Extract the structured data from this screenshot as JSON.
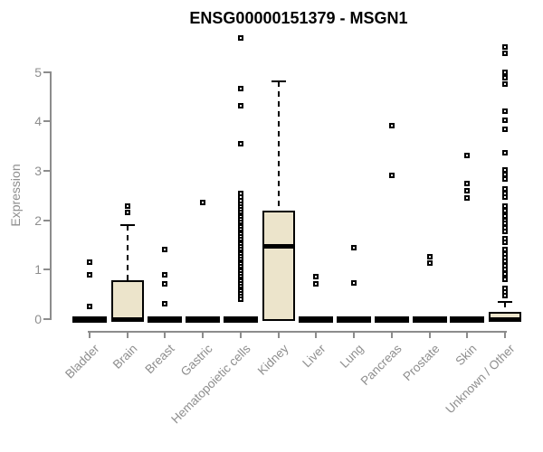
{
  "title": "ENSG00000151379 - MSGN1",
  "chart_data": {
    "type": "boxplot",
    "title": "ENSG00000151379 - MSGN1",
    "xlabel": "",
    "ylabel": "Expression",
    "ylim": [
      0,
      5
    ],
    "yticks": [
      0,
      1,
      2,
      3,
      4,
      5
    ],
    "grid": false,
    "legend": false,
    "box_fill_color": "#ece4cb",
    "box_border_color": "#000000",
    "axis_color": "#8c8c8c",
    "axis_text_color": "#8e8e8e",
    "categories": [
      "Bladder",
      "Brain",
      "Breast",
      "Gastric",
      "Hematopoietic cells",
      "Kidney",
      "Liver",
      "Lung",
      "Pancreas",
      "Prostate",
      "Skin",
      "Unknown / Other"
    ],
    "series": [
      {
        "name": "Bladder",
        "q1": 0,
        "median": 0,
        "q3": 0,
        "whisker_low": 0,
        "whisker_high": 0,
        "outliers": [
          1.15,
          0.9,
          0.26
        ]
      },
      {
        "name": "Brain",
        "q1": 0,
        "median": 0,
        "q3": 0.78,
        "whisker_low": 0,
        "whisker_high": 1.9,
        "outliers": [
          2.28,
          2.16
        ]
      },
      {
        "name": "Breast",
        "q1": 0,
        "median": 0,
        "q3": 0,
        "whisker_low": 0,
        "whisker_high": 0,
        "outliers": [
          1.41,
          0.9,
          0.72,
          0.31
        ]
      },
      {
        "name": "Gastric",
        "q1": 0,
        "median": 0,
        "q3": 0,
        "whisker_low": 0,
        "whisker_high": 0,
        "outliers": [
          2.36
        ]
      },
      {
        "name": "Hematopoietic cells",
        "q1": 0,
        "median": 0,
        "q3": 0,
        "whisker_low": 0,
        "whisker_high": 0,
        "outliers": [
          5.68,
          4.66,
          4.31,
          3.55,
          2.54,
          2.46,
          2.4,
          2.33,
          2.27,
          2.21,
          2.16,
          2.11,
          2.06,
          2.01,
          1.96,
          1.91,
          1.86,
          1.81,
          1.76,
          1.71,
          1.66,
          1.61,
          1.56,
          1.51,
          1.46,
          1.41,
          1.36,
          1.31,
          1.26,
          1.21,
          1.16,
          1.11,
          1.06,
          1.01,
          0.96,
          0.91,
          0.86,
          0.81,
          0.76,
          0.71,
          0.66,
          0.61,
          0.56,
          0.51,
          0.46,
          0.41
        ]
      },
      {
        "name": "Kidney",
        "q1": 0,
        "median": 1.47,
        "q3": 2.19,
        "whisker_low": 0,
        "whisker_high": 4.8,
        "outliers": []
      },
      {
        "name": "Liver",
        "q1": 0,
        "median": 0,
        "q3": 0,
        "whisker_low": 0,
        "whisker_high": 0,
        "outliers": [
          0.86,
          0.72
        ]
      },
      {
        "name": "Lung",
        "q1": 0,
        "median": 0,
        "q3": 0,
        "whisker_low": 0,
        "whisker_high": 0,
        "outliers": [
          1.45,
          0.73
        ]
      },
      {
        "name": "Pancreas",
        "q1": 0,
        "median": 0,
        "q3": 0,
        "whisker_low": 0,
        "whisker_high": 0,
        "outliers": [
          3.92,
          2.91
        ]
      },
      {
        "name": "Prostate",
        "q1": 0,
        "median": 0,
        "q3": 0,
        "whisker_low": 0,
        "whisker_high": 0,
        "outliers": [
          1.26,
          1.14
        ]
      },
      {
        "name": "Skin",
        "q1": 0,
        "median": 0,
        "q3": 0,
        "whisker_low": 0,
        "whisker_high": 0,
        "outliers": [
          3.3,
          2.75,
          2.6,
          2.45
        ]
      },
      {
        "name": "Unknown / Other",
        "q1": 0,
        "median": 0,
        "q3": 0.15,
        "whisker_low": 0,
        "whisker_high": 0.34,
        "outliers": [
          5.5,
          5.37,
          5.0,
          4.88,
          4.76,
          4.21,
          4.03,
          3.83,
          3.37,
          3.02,
          2.92,
          2.84,
          2.64,
          2.55,
          2.47,
          2.29,
          2.2,
          2.08,
          2.0,
          1.93,
          1.85,
          1.78,
          1.63,
          1.56,
          1.4,
          1.32,
          1.25,
          1.17,
          1.07,
          1.0,
          0.92,
          0.85,
          0.8,
          0.62,
          0.55,
          0.48
        ]
      }
    ]
  }
}
